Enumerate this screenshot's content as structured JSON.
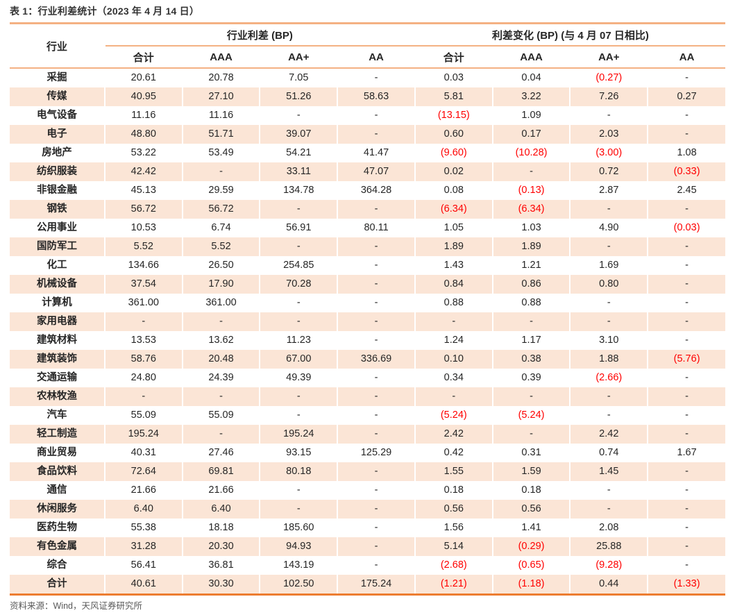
{
  "title": "表 1：行业利差统计（2023 年 4 月 14 日）",
  "footer": "资料来源：Wind，天风证券研究所",
  "colors": {
    "accent_orange": "#ED7D31",
    "light_orange_rule": "#F4B183",
    "stripe_peach": "#FBE5D6",
    "negative_red": "#FF0000",
    "text_dark": "#262626",
    "footer_gray": "#595959"
  },
  "table": {
    "corner_header": "行业",
    "group_headers": [
      "行业利差 (BP)",
      "利差变化 (BP) (与 4 月 07 日相比)"
    ],
    "sub_headers": [
      "合计",
      "AAA",
      "AA+",
      "AA",
      "合计",
      "AAA",
      "AA+",
      "AA"
    ],
    "rows": [
      {
        "industry": "采掘",
        "values": [
          "20.61",
          "20.78",
          "7.05",
          "-",
          "0.03",
          "0.04",
          "(0.27)",
          "-"
        ]
      },
      {
        "industry": "传媒",
        "values": [
          "40.95",
          "27.10",
          "51.26",
          "58.63",
          "5.81",
          "3.22",
          "7.26",
          "0.27"
        ]
      },
      {
        "industry": "电气设备",
        "values": [
          "11.16",
          "11.16",
          "-",
          "-",
          "(13.15)",
          "1.09",
          "-",
          "-"
        ]
      },
      {
        "industry": "电子",
        "values": [
          "48.80",
          "51.71",
          "39.07",
          "-",
          "0.60",
          "0.17",
          "2.03",
          "-"
        ]
      },
      {
        "industry": "房地产",
        "values": [
          "53.22",
          "53.49",
          "54.21",
          "41.47",
          "(9.60)",
          "(10.28)",
          "(3.00)",
          "1.08"
        ]
      },
      {
        "industry": "纺织服装",
        "values": [
          "42.42",
          "-",
          "33.11",
          "47.07",
          "0.02",
          "-",
          "0.72",
          "(0.33)"
        ]
      },
      {
        "industry": "非银金融",
        "values": [
          "45.13",
          "29.59",
          "134.78",
          "364.28",
          "0.08",
          "(0.13)",
          "2.87",
          "2.45"
        ]
      },
      {
        "industry": "钢铁",
        "values": [
          "56.72",
          "56.72",
          "-",
          "-",
          "(6.34)",
          "(6.34)",
          "-",
          "-"
        ]
      },
      {
        "industry": "公用事业",
        "values": [
          "10.53",
          "6.74",
          "56.91",
          "80.11",
          "1.05",
          "1.03",
          "4.90",
          "(0.03)"
        ]
      },
      {
        "industry": "国防军工",
        "values": [
          "5.52",
          "5.52",
          "-",
          "-",
          "1.89",
          "1.89",
          "-",
          "-"
        ]
      },
      {
        "industry": "化工",
        "values": [
          "134.66",
          "26.50",
          "254.85",
          "-",
          "1.43",
          "1.21",
          "1.69",
          "-"
        ]
      },
      {
        "industry": "机械设备",
        "values": [
          "37.54",
          "17.90",
          "70.28",
          "-",
          "0.84",
          "0.86",
          "0.80",
          "-"
        ]
      },
      {
        "industry": "计算机",
        "values": [
          "361.00",
          "361.00",
          "-",
          "-",
          "0.88",
          "0.88",
          "-",
          "-"
        ]
      },
      {
        "industry": "家用电器",
        "values": [
          "-",
          "-",
          "-",
          "-",
          "-",
          "-",
          "-",
          "-"
        ]
      },
      {
        "industry": "建筑材料",
        "values": [
          "13.53",
          "13.62",
          "11.23",
          "-",
          "1.24",
          "1.17",
          "3.10",
          "-"
        ]
      },
      {
        "industry": "建筑装饰",
        "values": [
          "58.76",
          "20.48",
          "67.00",
          "336.69",
          "0.10",
          "0.38",
          "1.88",
          "(5.76)"
        ]
      },
      {
        "industry": "交通运输",
        "values": [
          "24.80",
          "24.39",
          "49.39",
          "-",
          "0.34",
          "0.39",
          "(2.66)",
          "-"
        ]
      },
      {
        "industry": "农林牧渔",
        "values": [
          "-",
          "-",
          "-",
          "-",
          "-",
          "-",
          "-",
          "-"
        ]
      },
      {
        "industry": "汽车",
        "values": [
          "55.09",
          "55.09",
          "-",
          "-",
          "(5.24)",
          "(5.24)",
          "-",
          "-"
        ]
      },
      {
        "industry": "轻工制造",
        "values": [
          "195.24",
          "-",
          "195.24",
          "-",
          "2.42",
          "-",
          "2.42",
          "-"
        ]
      },
      {
        "industry": "商业贸易",
        "values": [
          "40.31",
          "27.46",
          "93.15",
          "125.29",
          "0.42",
          "0.31",
          "0.74",
          "1.67"
        ]
      },
      {
        "industry": "食品饮料",
        "values": [
          "72.64",
          "69.81",
          "80.18",
          "-",
          "1.55",
          "1.59",
          "1.45",
          "-"
        ]
      },
      {
        "industry": "通信",
        "values": [
          "21.66",
          "21.66",
          "-",
          "-",
          "0.18",
          "0.18",
          "-",
          "-"
        ]
      },
      {
        "industry": "休闲服务",
        "values": [
          "6.40",
          "6.40",
          "-",
          "-",
          "0.56",
          "0.56",
          "-",
          "-"
        ]
      },
      {
        "industry": "医药生物",
        "values": [
          "55.38",
          "18.18",
          "185.60",
          "-",
          "1.56",
          "1.41",
          "2.08",
          "-"
        ]
      },
      {
        "industry": "有色金属",
        "values": [
          "31.28",
          "20.30",
          "94.93",
          "-",
          "5.14",
          "(0.29)",
          "25.88",
          "-"
        ]
      },
      {
        "industry": "综合",
        "values": [
          "56.41",
          "36.81",
          "143.19",
          "-",
          "(2.68)",
          "(0.65)",
          "(9.28)",
          "-"
        ]
      },
      {
        "industry": "合计",
        "values": [
          "40.61",
          "30.30",
          "102.50",
          "175.24",
          "(1.21)",
          "(1.18)",
          "0.44",
          "(1.33)"
        ]
      }
    ]
  }
}
